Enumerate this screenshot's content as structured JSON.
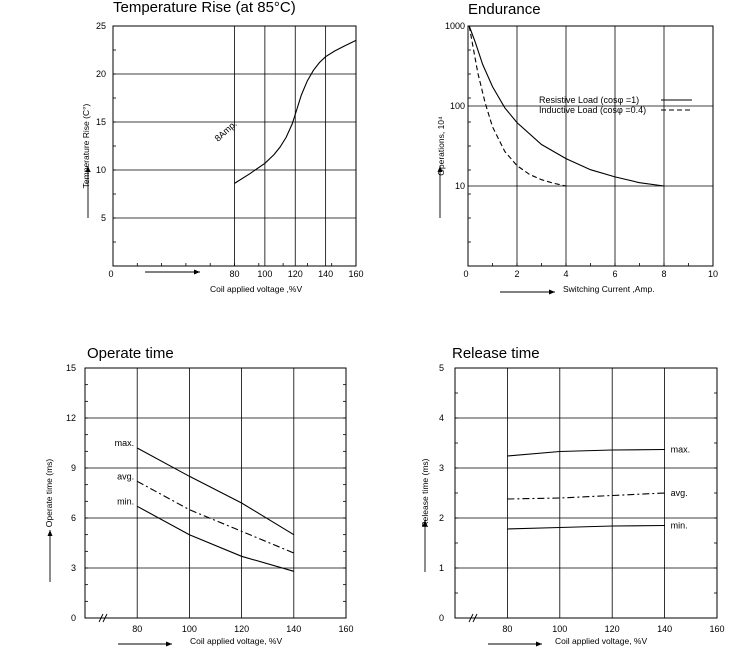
{
  "chart_data": [
    {
      "id": "temp",
      "type": "line",
      "title": "Temperature Rise (at 85°C)",
      "xlabel": "Coil applied voltage ,%V",
      "ylabel": "Temperature Rise (C°)",
      "xlim": [
        0,
        160
      ],
      "ylim": [
        0,
        25
      ],
      "xticks": [
        0,
        80,
        100,
        120,
        140,
        160
      ],
      "yticks": [
        5,
        10,
        15,
        20,
        25
      ],
      "grid": true,
      "series": [
        {
          "label": "8Amp.",
          "dash": "",
          "x": [
            80,
            90,
            100,
            106,
            110,
            114,
            118,
            121,
            124,
            128,
            132,
            136,
            140,
            146,
            152,
            160
          ],
          "y": [
            8.6,
            9.6,
            10.7,
            11.6,
            12.4,
            13.4,
            14.8,
            16.3,
            17.8,
            19.3,
            20.4,
            21.2,
            21.8,
            22.4,
            22.9,
            23.5
          ]
        }
      ]
    },
    {
      "id": "endurance",
      "type": "line",
      "title": "Endurance",
      "xlabel": "Switching Current ,Amp.",
      "ylabel": "Operations, 10⁴",
      "xlim": [
        0,
        10
      ],
      "ylim": [
        1,
        1000
      ],
      "yscale": "log",
      "xticks": [
        0,
        2,
        4,
        6,
        8,
        10
      ],
      "yticks": [
        10,
        100,
        1000
      ],
      "grid": true,
      "legend": {
        "position": "top-right",
        "entries": [
          {
            "name": "Resistive Load (cosφ =1)",
            "dash": ""
          },
          {
            "name": "Inductive Load (cosφ =0.4)",
            "dash": "5,3"
          }
        ]
      },
      "series": [
        {
          "name": "Resistive Load (cosφ =1)",
          "dash": "",
          "x": [
            0.05,
            0.3,
            0.6,
            1,
            1.5,
            2,
            3,
            4,
            5,
            6,
            7,
            8
          ],
          "y": [
            1000,
            620,
            330,
            175,
            95,
            62,
            33,
            22,
            16,
            13,
            11,
            10
          ]
        },
        {
          "name": "Inductive Load (cosφ =0.4)",
          "dash": "5,3",
          "x": [
            0.05,
            0.2,
            0.4,
            0.7,
            1,
            1.5,
            2,
            2.5,
            3,
            3.5,
            4
          ],
          "y": [
            1000,
            560,
            260,
            110,
            55,
            27,
            18,
            14,
            12,
            10.8,
            10
          ]
        }
      ]
    },
    {
      "id": "operate",
      "type": "line",
      "title": "Operate time",
      "xlabel": "Coil applied voltage, %V",
      "ylabel": "Operate time (ms)",
      "xlim": [
        60,
        160
      ],
      "ylim": [
        0,
        15
      ],
      "xticks": [
        80,
        100,
        120,
        140,
        160
      ],
      "yticks": [
        0,
        3,
        6,
        9,
        12,
        15
      ],
      "grid": true,
      "series": [
        {
          "label": "max.",
          "dash": "",
          "x": [
            80,
            100,
            120,
            140
          ],
          "y": [
            10.2,
            8.5,
            6.9,
            5.0
          ]
        },
        {
          "label": "avg.",
          "dash": "7,3,2,3",
          "x": [
            80,
            100,
            120,
            140
          ],
          "y": [
            8.2,
            6.5,
            5.2,
            3.9
          ]
        },
        {
          "label": "min.",
          "dash": "",
          "x": [
            80,
            100,
            120,
            140
          ],
          "y": [
            6.7,
            5.0,
            3.7,
            2.8
          ]
        }
      ]
    },
    {
      "id": "release",
      "type": "line",
      "title": "Release time",
      "xlabel": "Coil applied voltage, %V",
      "ylabel": "Release time (ms)",
      "xlim": [
        60,
        160
      ],
      "ylim": [
        0,
        5
      ],
      "xticks": [
        80,
        100,
        120,
        140,
        160
      ],
      "yticks": [
        0,
        1,
        2,
        3,
        4,
        5
      ],
      "grid": true,
      "series": [
        {
          "label": "max.",
          "dash": "",
          "x": [
            80,
            100,
            120,
            140
          ],
          "y": [
            3.24,
            3.33,
            3.36,
            3.37
          ]
        },
        {
          "label": "avg.",
          "dash": "7,3,2,3",
          "x": [
            80,
            100,
            120,
            140
          ],
          "y": [
            2.38,
            2.4,
            2.45,
            2.5
          ]
        },
        {
          "label": "min.",
          "dash": "",
          "x": [
            80,
            100,
            120,
            140
          ],
          "y": [
            1.78,
            1.81,
            1.84,
            1.85
          ]
        }
      ]
    }
  ]
}
